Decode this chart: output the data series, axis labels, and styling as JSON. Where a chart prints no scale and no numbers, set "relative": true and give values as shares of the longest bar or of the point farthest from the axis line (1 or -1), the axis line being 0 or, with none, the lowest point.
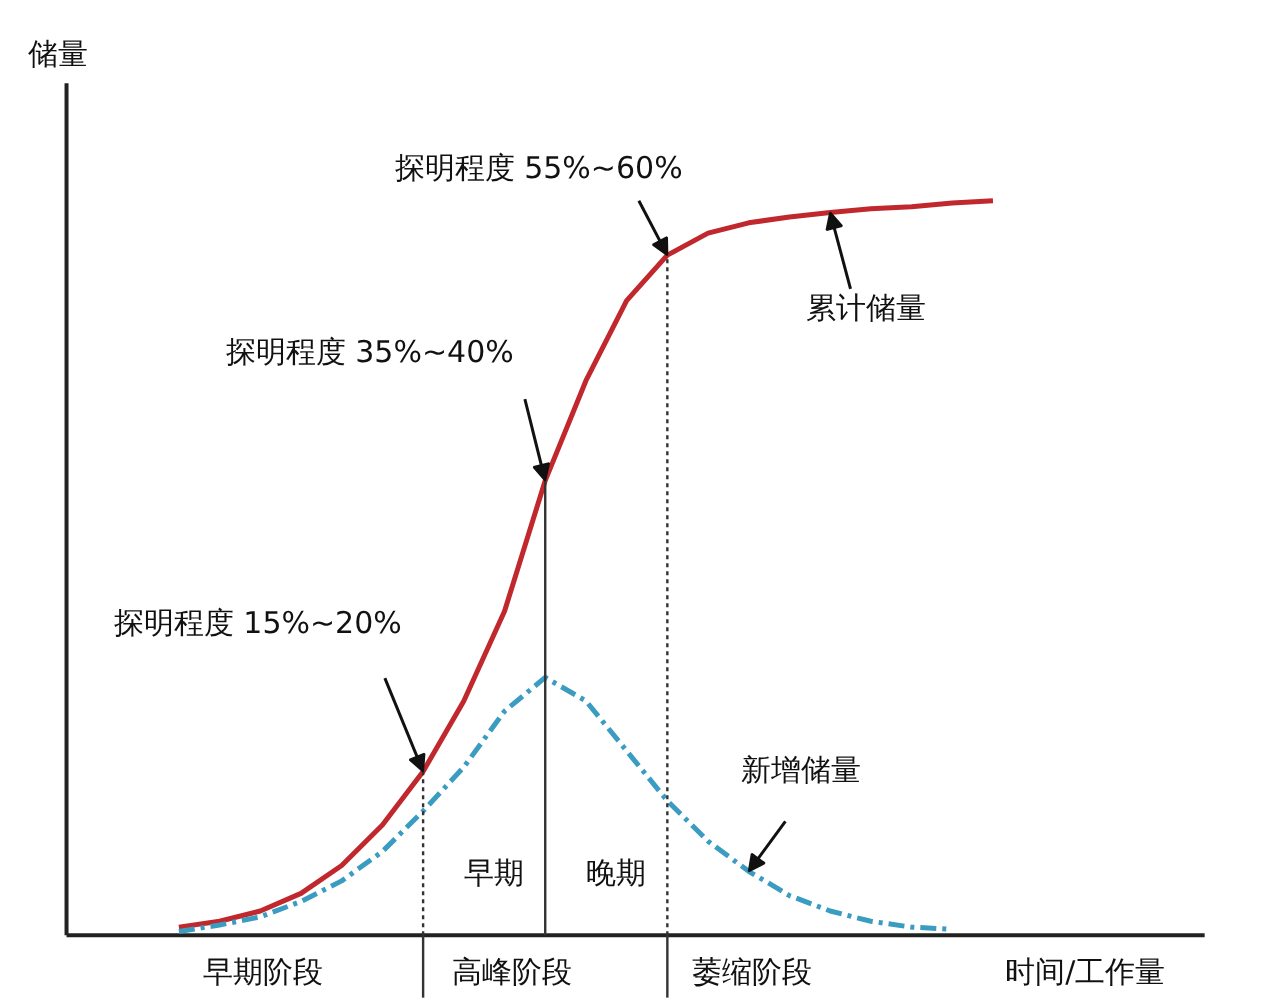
{
  "chart_data": {
    "type": "line",
    "relative": true,
    "ylabel": "储量",
    "xlabel": "时间/工作量",
    "categories": [
      null,
      null,
      null,
      null,
      null,
      null,
      null,
      null,
      null,
      null,
      null,
      null,
      null,
      null,
      null,
      null,
      null,
      null,
      null,
      null,
      null
    ],
    "series": [
      {
        "name": "累计储量",
        "color": "#c0282d",
        "line_style": "solid",
        "values": [
          0.011,
          0.019,
          0.033,
          0.057,
          0.095,
          0.15,
          0.223,
          0.319,
          0.441,
          0.619,
          0.755,
          0.864,
          0.926,
          0.956,
          0.97,
          0.978,
          0.984,
          0.989,
          0.992,
          0.997,
          1.0
        ]
      },
      {
        "name": "新增储量",
        "color": "#3a9cc0",
        "line_style": "dashed",
        "values": [
          0.005,
          0.014,
          0.025,
          0.046,
          0.074,
          0.114,
          0.169,
          0.229,
          0.305,
          0.351,
          0.319,
          0.251,
          0.183,
          0.128,
          0.087,
          0.054,
          0.033,
          0.019,
          0.011,
          0.008,
          null
        ]
      }
    ],
    "annotations": [
      "探明程度 15%~20%",
      "探明程度 35%~40%",
      "探明程度 55%~60%",
      "早期",
      "晚期",
      "早期阶段",
      "高峰阶段",
      "萎缩阶段"
    ],
    "legend": false,
    "grid": false,
    "tick_labels": false
  }
}
